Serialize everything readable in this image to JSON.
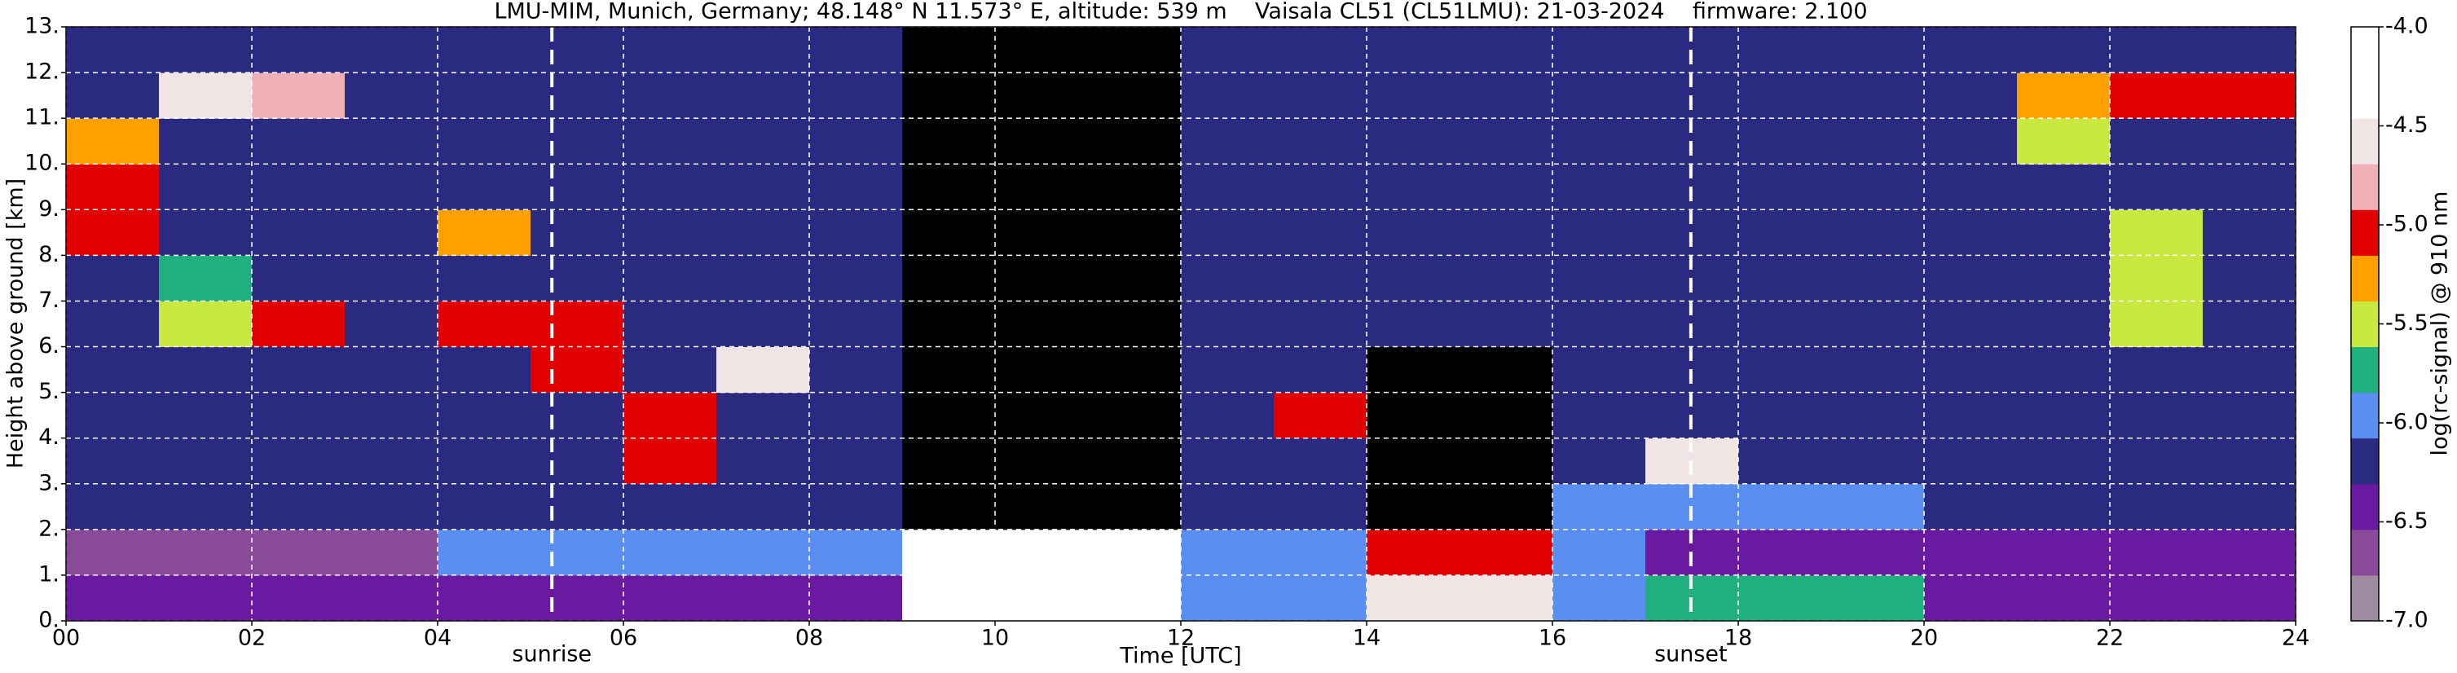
{
  "chart_data": {
    "type": "heatmap",
    "title": "LMU-MIM, Munich, Germany; 48.148° N 11.573° E, altitude: 539 m    Vaisala CL51 (CL51LMU): 21-03-2024    firmware: 2.100",
    "xlabel": "Time [UTC]",
    "ylabel": "Height above ground [km]",
    "colorbar_label": "log(rc-signal) @ 910 nm",
    "xlim": [
      0,
      24
    ],
    "ylim": [
      0,
      13
    ],
    "xticks": [
      {
        "value": 0,
        "label": "00"
      },
      {
        "value": 2,
        "label": "02"
      },
      {
        "value": 4,
        "label": "04"
      },
      {
        "value": 6,
        "label": "06"
      },
      {
        "value": 8,
        "label": "08"
      },
      10,
      12,
      14,
      16,
      18,
      20,
      22,
      24
    ],
    "yticks": [
      {
        "value": 0,
        "label": "0."
      },
      {
        "value": 1,
        "label": "1."
      },
      {
        "value": 2,
        "label": "2."
      },
      {
        "value": 3,
        "label": "3."
      },
      {
        "value": 4,
        "label": "4."
      },
      {
        "value": 5,
        "label": "5."
      },
      {
        "value": 6,
        "label": "6."
      },
      {
        "value": 7,
        "label": "7."
      },
      {
        "value": 8,
        "label": "8."
      },
      {
        "value": 9,
        "label": "9."
      },
      {
        "value": 10,
        "label": "10."
      },
      {
        "value": 11,
        "label": "11."
      },
      {
        "value": 12,
        "label": "12."
      },
      {
        "value": 13,
        "label": "13."
      }
    ],
    "grid": true,
    "x_bins": [
      0,
      1,
      2,
      3,
      4,
      5,
      6,
      7,
      8,
      9,
      10,
      11,
      12,
      13,
      14,
      15,
      16,
      17,
      18,
      19,
      20,
      21,
      22,
      23,
      24
    ],
    "y_bins": [
      0,
      1,
      2,
      3,
      4,
      5,
      6,
      7,
      8,
      9,
      10,
      11,
      12,
      13
    ],
    "z": [
      [
        -6.5,
        -6.5,
        -6.5,
        -6.5,
        -6.5,
        -6.5,
        -6.5,
        -6.5,
        -6.5,
        -4.25,
        -4.25,
        -4.25,
        -6,
        -6,
        -4.5,
        -4.5,
        -6,
        -5.75,
        -5.75,
        -5.75,
        -6.5,
        -6.5,
        -6.5,
        -6.5
      ],
      [
        -6.75,
        -6.75,
        -6.75,
        -6.75,
        -6,
        -6,
        -6,
        -6,
        -6,
        -4.25,
        -4.25,
        -4.25,
        -6,
        -6,
        -5,
        -5,
        -6,
        -6.5,
        -6.5,
        -6.5,
        -6.5,
        -6.5,
        -6.5,
        -6.5
      ],
      [
        -6.25,
        -6.25,
        -6.25,
        -6.25,
        -6.25,
        -6.25,
        -6.25,
        -6.25,
        -6.25,
        -7.5,
        -7.5,
        -7.5,
        -6.25,
        -6.25,
        -7.5,
        -7.5,
        -6,
        -6,
        -6,
        -6,
        -6.25,
        -6.25,
        -6.25,
        -6.25
      ],
      [
        -6.25,
        -6.25,
        -6.25,
        -6.25,
        -6.25,
        -6.25,
        -5,
        -6.25,
        -6.25,
        -7.5,
        -7.5,
        -7.5,
        -6.25,
        -6.25,
        -7.5,
        -7.5,
        -6.25,
        -4.5,
        -6.25,
        -6.25,
        -6.25,
        -6.25,
        -6.25,
        -6.25
      ],
      [
        -6.25,
        -6.25,
        -6.25,
        -6.25,
        -6.25,
        -6.25,
        -5,
        -6.25,
        -6.25,
        -7.5,
        -7.5,
        -7.5,
        -6.25,
        -5,
        -7.5,
        -7.5,
        -6.25,
        -6.25,
        -6.25,
        -6.25,
        -6.25,
        -6.25,
        -6.25,
        -6.25
      ],
      [
        -6.25,
        -6.25,
        -6.25,
        -6.25,
        -6.25,
        -5,
        -6.25,
        -4.5,
        -6.25,
        -7.5,
        -7.5,
        -7.5,
        -6.25,
        -6.25,
        -7.5,
        -7.5,
        -6.25,
        -6.25,
        -6.25,
        -6.25,
        -6.25,
        -6.25,
        -6.25,
        -6.25
      ],
      [
        -6.25,
        -5.5,
        -5,
        -6.25,
        -5,
        -5,
        -6.25,
        -6.25,
        -6.25,
        -7.5,
        -7.5,
        -7.5,
        -6.25,
        -6.25,
        -6.25,
        -6.25,
        -6.25,
        -6.25,
        -6.25,
        -6.25,
        -6.25,
        -6.25,
        -5.5,
        -6.25
      ],
      [
        -6.25,
        -5.75,
        -6.25,
        -6.25,
        -6.25,
        -6.25,
        -6.25,
        -6.25,
        -6.25,
        -7.5,
        -7.5,
        -7.5,
        -6.25,
        -6.25,
        -6.25,
        -6.25,
        -6.25,
        -6.25,
        -6.25,
        -6.25,
        -6.25,
        -6.25,
        -5.5,
        -6.25
      ],
      [
        -5,
        -6.25,
        -6.25,
        -6.25,
        -5.25,
        -6.25,
        -6.25,
        -6.25,
        -6.25,
        -7.5,
        -7.5,
        -7.5,
        -6.25,
        -6.25,
        -6.25,
        -6.25,
        -6.25,
        -6.25,
        -6.25,
        -6.25,
        -6.25,
        -6.25,
        -5.5,
        -6.25
      ],
      [
        -5,
        -6.25,
        -6.25,
        -6.25,
        -6.25,
        -6.25,
        -6.25,
        -6.25,
        -6.25,
        -7.5,
        -7.5,
        -7.5,
        -6.25,
        -6.25,
        -6.25,
        -6.25,
        -6.25,
        -6.25,
        -6.25,
        -6.25,
        -6.25,
        -6.25,
        -6.25,
        -6.25
      ],
      [
        -5.25,
        -6.25,
        -6.25,
        -6.25,
        -6.25,
        -6.25,
        -6.25,
        -6.25,
        -6.25,
        -7.5,
        -7.5,
        -7.5,
        -6.25,
        -6.25,
        -6.25,
        -6.25,
        -6.25,
        -6.25,
        -6.25,
        -6.25,
        -6.25,
        -5.5,
        -6.25,
        -6.25
      ],
      [
        -6.25,
        -4.5,
        -4.75,
        -6.25,
        -6.25,
        -6.25,
        -6.25,
        -6.25,
        -6.25,
        -7.5,
        -7.5,
        -7.5,
        -6.25,
        -6.25,
        -6.25,
        -6.25,
        -6.25,
        -6.25,
        -6.25,
        -6.25,
        -6.25,
        -5.25,
        -5,
        -5
      ],
      [
        -6.25,
        -6.25,
        -6.25,
        -6.25,
        -6.25,
        -6.25,
        -6.25,
        -6.25,
        -6.25,
        -7.5,
        -7.5,
        -7.5,
        -6.25,
        -6.25,
        -6.25,
        -6.25,
        -6.25,
        -6.25,
        -6.25,
        -6.25,
        -6.25,
        -6.25,
        -6.25,
        -6.25
      ]
    ],
    "clim": [
      -7,
      -4
    ],
    "colormap": [
      "#a08aa0",
      "#8a4a9a",
      "#6a1aa0",
      "#2a2a80",
      "#5a8ef0",
      "#20b080",
      "#c8e840",
      "#ffa000",
      "#e00000",
      "#f0b0b8",
      "#f0e4e4",
      "#ffffff",
      "#ffffff"
    ],
    "under_color": "#000000",
    "cticks": [
      {
        "value": -4,
        "label": "-4.0"
      },
      -4.5,
      {
        "value": -5,
        "label": "-5.0"
      },
      -5.5,
      {
        "value": -6,
        "label": "-6.0"
      },
      -6.5,
      {
        "value": -7,
        "label": "-7.0"
      }
    ],
    "annotations": [
      {
        "text": "sunrise",
        "x": 5.23
      },
      {
        "text": "sunset",
        "x": 17.49
      }
    ]
  }
}
